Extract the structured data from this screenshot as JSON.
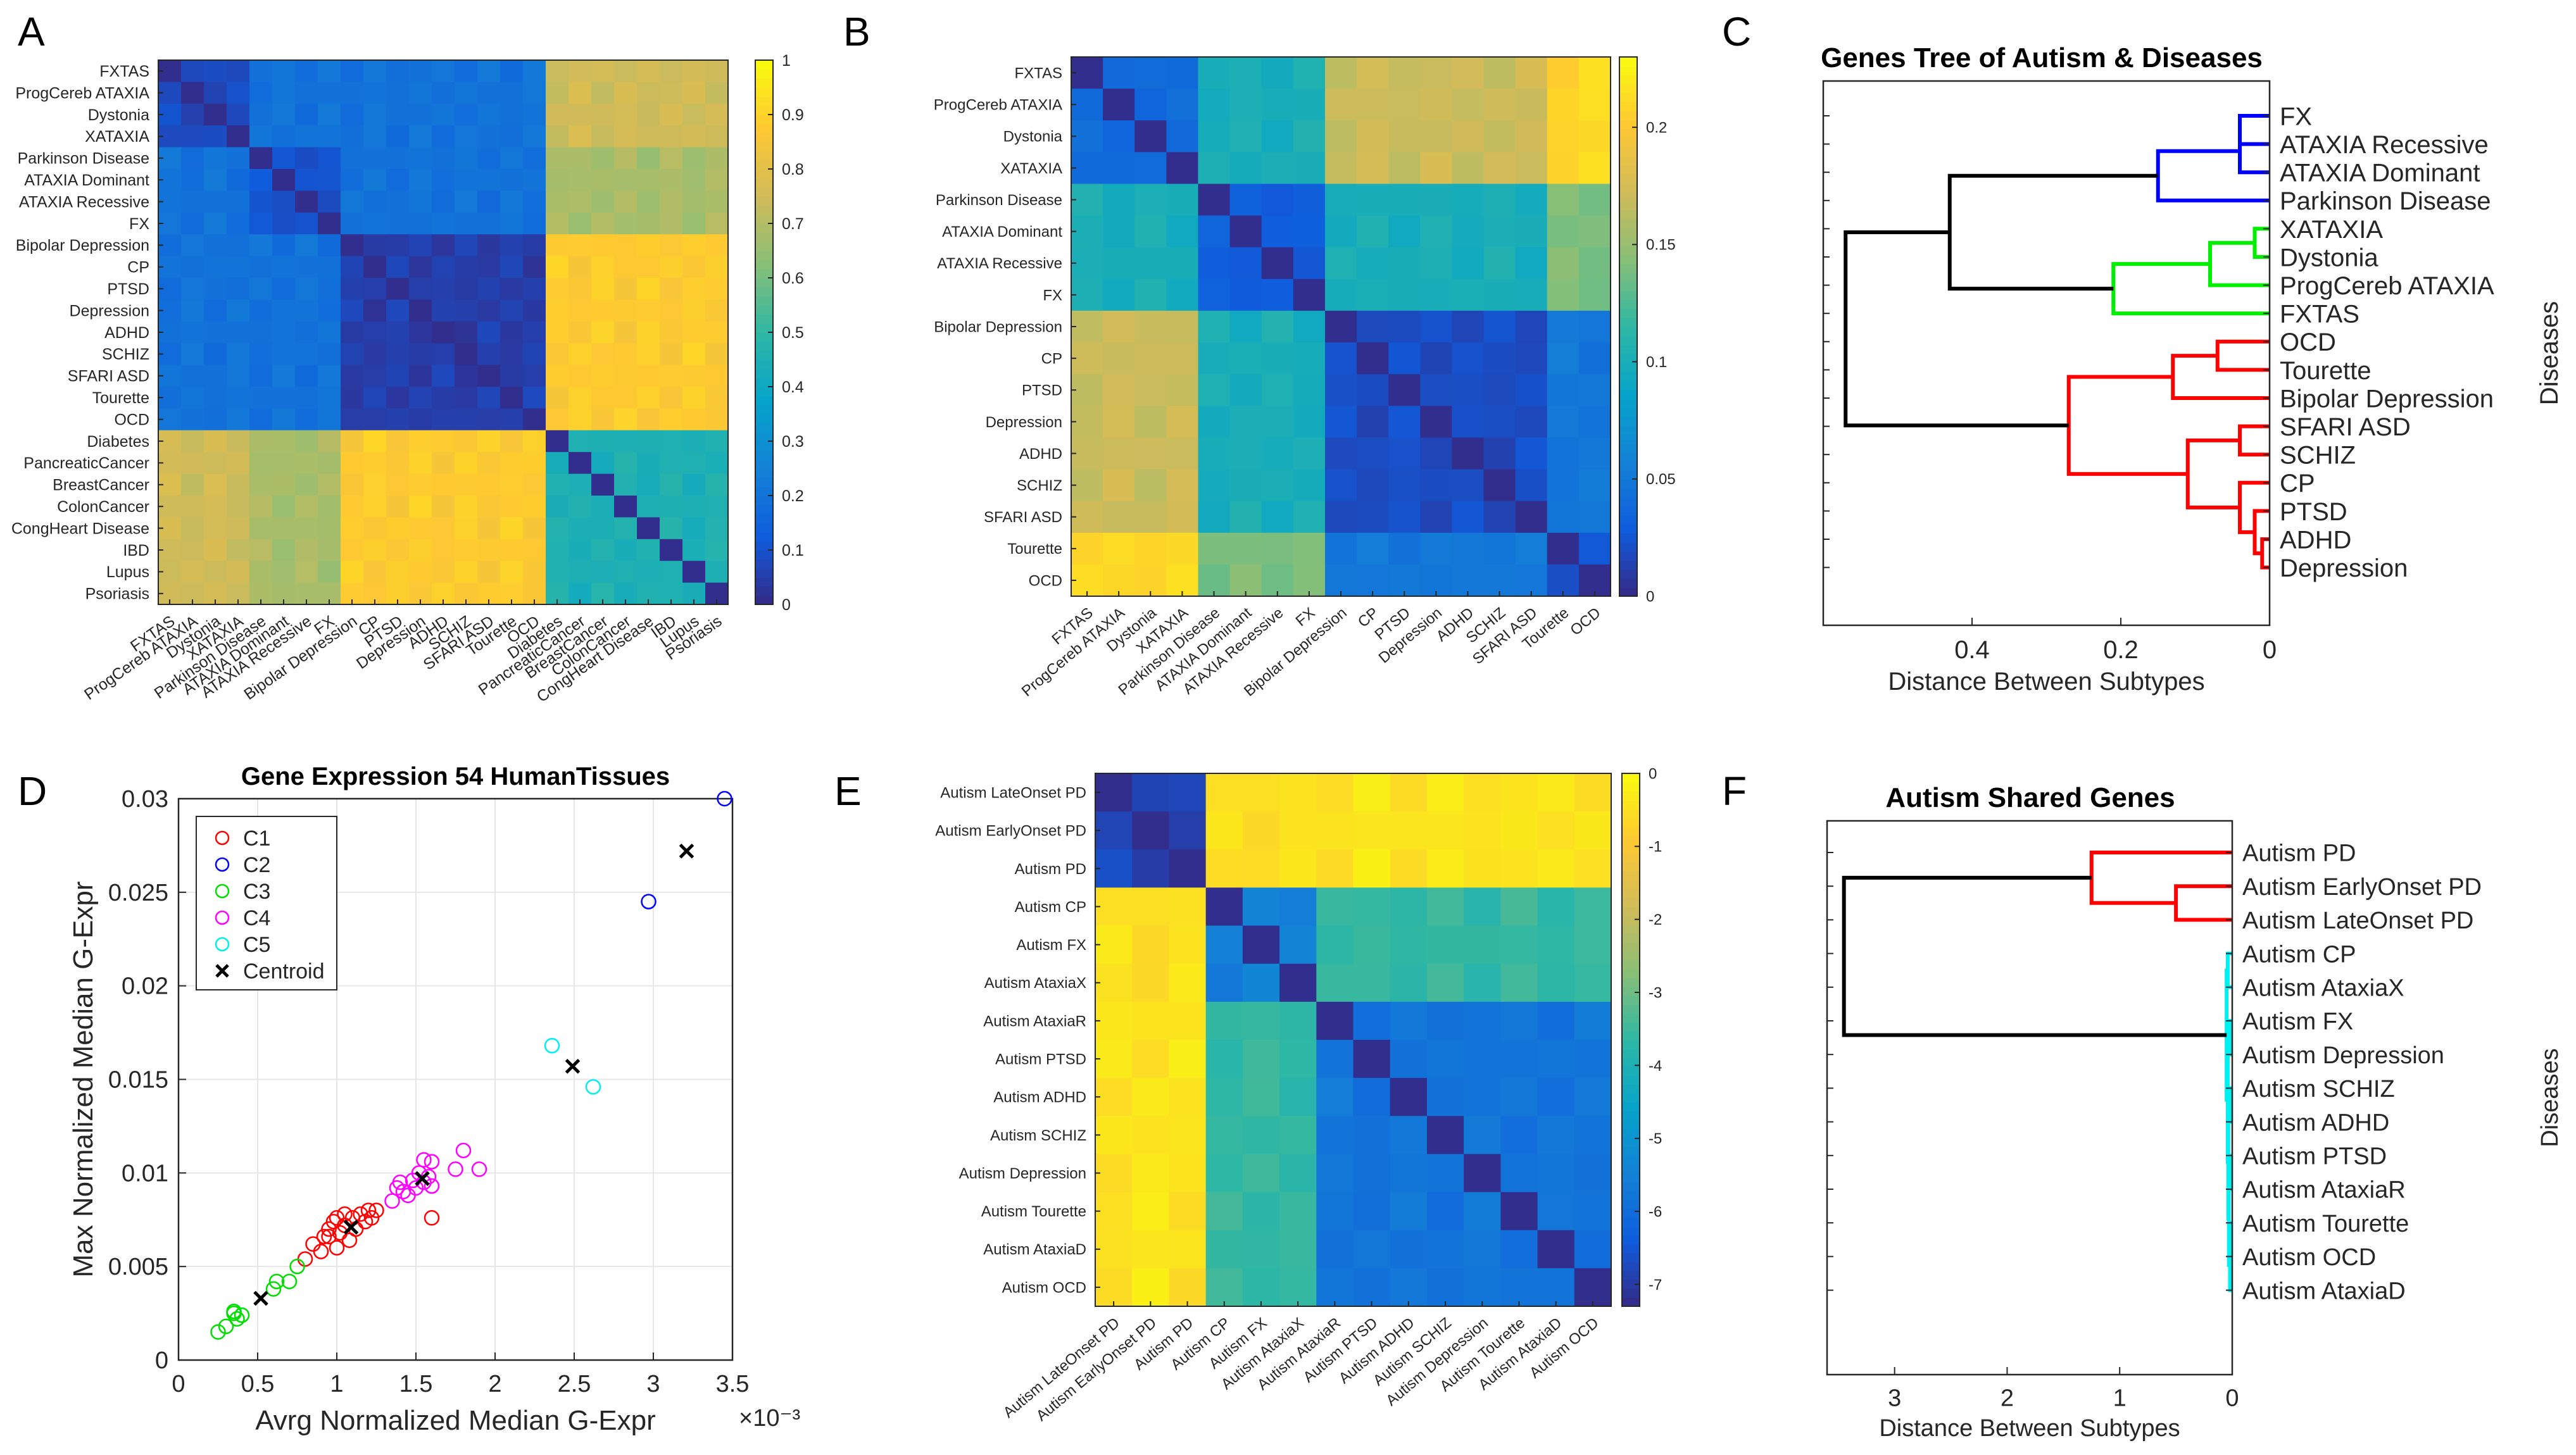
{
  "figure": {
    "panel_labels": [
      "A",
      "B",
      "C",
      "D",
      "E",
      "F"
    ]
  },
  "colors": {
    "parula": [
      "#352a87",
      "#0f5cdd",
      "#1481d6",
      "#06a4ca",
      "#2eb7a4",
      "#87bf77",
      "#d1bb59",
      "#fec832",
      "#f9fb0e"
    ],
    "cluster": [
      "#ff0000",
      "#0000ff",
      "#00dd00",
      "#ff00ff",
      "#00eeee",
      "#000000"
    ],
    "dendro": {
      "black": "#000000",
      "blue": "#0000ff",
      "green": "#00ee00",
      "red": "#ff0000",
      "cyan": "#00f0f0"
    }
  },
  "chart_data": [
    {
      "panel": "A",
      "type": "heatmap",
      "title": "",
      "labels": [
        "FXTAS",
        "ProgCereb ATAXIA",
        "Dystonia",
        "XATAXIA",
        "Parkinson Disease",
        "ATAXIA Dominant",
        "ATAXIA Recessive",
        "FX",
        "Bipolar Depression",
        "CP",
        "PTSD",
        "Depression",
        "ADHD",
        "SCHIZ",
        "SFARI ASD",
        "Tourette",
        "OCD",
        "Diabetes",
        "PancreaticCancer",
        "BreastCancer",
        "ColonCancer",
        "CongHeart Disease",
        "IBD",
        "Lupus",
        "Psoriasis"
      ],
      "groups": [
        [
          0,
          4
        ],
        [
          4,
          8
        ],
        [
          8,
          17
        ],
        [
          17,
          25
        ]
      ],
      "block_values": [
        [
          0.08,
          0.2,
          0.2,
          0.75
        ],
        [
          0.2,
          0.1,
          0.2,
          0.68
        ],
        [
          0.2,
          0.2,
          0.05,
          0.88
        ],
        [
          0.75,
          0.68,
          0.88,
          0.45
        ]
      ],
      "colorbar": {
        "min": 0,
        "max": 1,
        "ticks": [
          0,
          0.1,
          0.2,
          0.3,
          0.4,
          0.5,
          0.6,
          0.7,
          0.8,
          0.9,
          1
        ],
        "tick_labels": [
          "0",
          "0.1",
          "0.2",
          "0.3",
          "0.4",
          "0.5",
          "0.6",
          "0.7",
          "0.8",
          "0.9",
          "1"
        ]
      }
    },
    {
      "panel": "B",
      "type": "heatmap",
      "title": "",
      "labels": [
        "FXTAS",
        "ProgCereb ATAXIA",
        "Dystonia",
        "XATAXIA",
        "Parkinson Disease",
        "ATAXIA Dominant",
        "ATAXIA Recessive",
        "FX",
        "Bipolar Depression",
        "CP",
        "PTSD",
        "Depression",
        "ADHD",
        "SCHIZ",
        "SFARI ASD",
        "Tourette",
        "OCD"
      ],
      "groups": [
        [
          0,
          4
        ],
        [
          4,
          8
        ],
        [
          8,
          15
        ],
        [
          15,
          17
        ]
      ],
      "block_values": [
        [
          0.04,
          0.1,
          0.17,
          0.21
        ],
        [
          0.1,
          0.03,
          0.1,
          0.14
        ],
        [
          0.17,
          0.1,
          0.02,
          0.05
        ],
        [
          0.21,
          0.14,
          0.05,
          0.02
        ]
      ],
      "colorbar": {
        "min": 0,
        "max": 0.23,
        "ticks": [
          0,
          0.05,
          0.1,
          0.15,
          0.2
        ],
        "tick_labels": [
          "0",
          "0.05",
          "0.1",
          "0.15",
          "0.2"
        ]
      }
    },
    {
      "panel": "C",
      "type": "dendrogram",
      "title": "Genes Tree of Autism & Diseases",
      "xlabel": "Distance Between Subtypes",
      "ylabel": "Diseases",
      "xlim": [
        0.6,
        0
      ],
      "xticks": [
        0.4,
        0.2,
        0
      ],
      "xtick_labels": [
        "0.4",
        "0.2",
        "0"
      ],
      "leaves": [
        "FX",
        "ATAXIA Recessive",
        "ATAXIA Dominant",
        "Parkinson Disease",
        "XATAXIA",
        "Dystonia",
        "ProgCereb ATAXIA",
        "FXTAS",
        "OCD",
        "Tourette",
        "Bipolar Depression",
        "SFARI ASD",
        "SCHIZ",
        "CP",
        "PTSD",
        "ADHD",
        "Depression"
      ],
      "merges": [
        [
          0,
          1,
          0.04,
          "blue"
        ],
        [
          17,
          2,
          0.04,
          "blue"
        ],
        [
          18,
          3,
          0.15,
          "blue"
        ],
        [
          4,
          5,
          0.02,
          "green"
        ],
        [
          20,
          6,
          0.08,
          "green"
        ],
        [
          21,
          7,
          0.21,
          "green"
        ],
        [
          8,
          9,
          0.07,
          "red"
        ],
        [
          23,
          10,
          0.13,
          "red"
        ],
        [
          11,
          12,
          0.04,
          "red"
        ],
        [
          15,
          16,
          0.01,
          "red"
        ],
        [
          14,
          26,
          0.02,
          "red"
        ],
        [
          13,
          27,
          0.04,
          "red"
        ],
        [
          25,
          28,
          0.11,
          "red"
        ],
        [
          24,
          29,
          0.27,
          "red"
        ],
        [
          19,
          22,
          0.43,
          "black"
        ],
        [
          31,
          30,
          0.57,
          "black"
        ]
      ]
    },
    {
      "panel": "D",
      "type": "scatter",
      "title": "Gene Expression 54 HumanTissues",
      "xlabel": "Avrg Normalized Median G-Expr",
      "ylabel": "Max Normalized Median G-Expr",
      "x_multiplier": "×10⁻³",
      "xlim": [
        0,
        3.5
      ],
      "ylim": [
        0,
        0.03
      ],
      "xticks": [
        0,
        0.5,
        1,
        1.5,
        2,
        2.5,
        3,
        3.5
      ],
      "xtick_labels": [
        "0",
        "0.5",
        "1",
        "1.5",
        "2",
        "2.5",
        "3",
        "3.5"
      ],
      "yticks": [
        0,
        0.005,
        0.01,
        0.015,
        0.02,
        0.025,
        0.03
      ],
      "ytick_labels": [
        "0",
        "0.005",
        "0.01",
        "0.015",
        "0.02",
        "0.025",
        "0.03"
      ],
      "series": [
        {
          "name": "C1",
          "points": [
            [
              0.8,
              0.0054
            ],
            [
              0.85,
              0.0062
            ],
            [
              0.9,
              0.0058
            ],
            [
              0.92,
              0.0066
            ],
            [
              0.95,
              0.007
            ],
            [
              0.98,
              0.0074
            ],
            [
              1.0,
              0.006
            ],
            [
              1.02,
              0.0068
            ],
            [
              1.05,
              0.0072
            ],
            [
              1.08,
              0.0064
            ],
            [
              1.1,
              0.0076
            ],
            [
              1.12,
              0.007
            ],
            [
              1.15,
              0.0078
            ],
            [
              1.18,
              0.0074
            ],
            [
              1.2,
              0.008
            ],
            [
              1.22,
              0.0076
            ],
            [
              1.25,
              0.008
            ],
            [
              1.0,
              0.0076
            ],
            [
              1.05,
              0.0078
            ],
            [
              0.95,
              0.0066
            ],
            [
              1.6,
              0.0076
            ]
          ]
        },
        {
          "name": "C2",
          "points": [
            [
              2.97,
              0.0245
            ],
            [
              3.45,
              0.03
            ]
          ]
        },
        {
          "name": "C3",
          "points": [
            [
              0.25,
              0.0015
            ],
            [
              0.3,
              0.0018
            ],
            [
              0.35,
              0.0025
            ],
            [
              0.37,
              0.0022
            ],
            [
              0.35,
              0.0026
            ],
            [
              0.6,
              0.0038
            ],
            [
              0.62,
              0.0042
            ],
            [
              0.7,
              0.0042
            ],
            [
              0.75,
              0.005
            ],
            [
              0.4,
              0.0024
            ]
          ]
        },
        {
          "name": "C4",
          "points": [
            [
              1.35,
              0.0085
            ],
            [
              1.4,
              0.0095
            ],
            [
              1.42,
              0.009
            ],
            [
              1.45,
              0.0088
            ],
            [
              1.48,
              0.0096
            ],
            [
              1.5,
              0.0092
            ],
            [
              1.52,
              0.01
            ],
            [
              1.55,
              0.0095
            ],
            [
              1.58,
              0.0098
            ],
            [
              1.6,
              0.0093
            ],
            [
              1.38,
              0.0092
            ],
            [
              1.55,
              0.0107
            ],
            [
              1.6,
              0.0106
            ],
            [
              1.75,
              0.0102
            ],
            [
              1.8,
              0.0112
            ],
            [
              1.9,
              0.0102
            ]
          ]
        },
        {
          "name": "C5",
          "points": [
            [
              2.36,
              0.0168
            ],
            [
              2.62,
              0.0146
            ]
          ]
        },
        {
          "name": "Centroid",
          "points": [
            [
              0.52,
              0.0033
            ],
            [
              1.09,
              0.0071
            ],
            [
              1.54,
              0.0097
            ],
            [
              2.49,
              0.0157
            ],
            [
              3.21,
              0.0272
            ]
          ]
        }
      ]
    },
    {
      "panel": "E",
      "type": "heatmap",
      "title": "",
      "labels": [
        "Autism LateOnset PD",
        "Autism EarlyOnset PD",
        "Autism PD",
        "Autism CP",
        "Autism FX",
        "Autism AtaxiaX",
        "Autism AtaxiaR",
        "Autism PTSD",
        "Autism ADHD",
        "Autism SCHIZ",
        "Autism Depression",
        "Autism Tourette",
        "Autism AtaxiaD",
        "Autism OCD"
      ],
      "groups": [
        [
          0,
          3
        ],
        [
          3,
          6
        ],
        [
          6,
          14
        ]
      ],
      "block_values": [
        [
          -6.8,
          -0.5,
          -0.4
        ],
        [
          -0.5,
          -5.5,
          -3.6
        ],
        [
          -0.4,
          -3.6,
          -5.8
        ]
      ],
      "colorbar": {
        "min": -7.3,
        "max": 0,
        "ticks": [
          0,
          -1,
          -2,
          -3,
          -4,
          -5,
          -6,
          -7
        ],
        "tick_labels": [
          "0",
          "-1",
          "-2",
          "-3",
          "-4",
          "-5",
          "-6",
          "-7"
        ]
      }
    },
    {
      "panel": "F",
      "type": "dendrogram",
      "title": "Autism Shared Genes",
      "xlabel": "Distance Between Subtypes",
      "ylabel": "Diseases",
      "xlim": [
        3.6,
        0
      ],
      "xticks": [
        3,
        2,
        1,
        0
      ],
      "xtick_labels": [
        "3",
        "2",
        "1",
        "0"
      ],
      "leaves": [
        "Autism PD",
        "Autism EarlyOnset PD",
        "Autism LateOnset PD",
        "Autism CP",
        "Autism AtaxiaX",
        "Autism FX",
        "Autism Depression",
        "Autism SCHIZ",
        "Autism ADHD",
        "Autism PTSD",
        "Autism AtaxiaR",
        "Autism Tourette",
        "Autism OCD",
        "Autism AtaxiaD"
      ],
      "merges": [
        [
          1,
          2,
          0.5,
          "red"
        ],
        [
          0,
          14,
          1.25,
          "red"
        ],
        [
          3,
          4,
          0.04,
          "cyan"
        ],
        [
          5,
          6,
          0.02,
          "cyan"
        ],
        [
          7,
          8,
          0.01,
          "cyan"
        ],
        [
          9,
          10,
          0.01,
          "cyan"
        ],
        [
          11,
          12,
          0.01,
          "cyan"
        ],
        [
          13,
          20,
          0.02,
          "cyan"
        ],
        [
          19,
          21,
          0.03,
          "cyan"
        ],
        [
          18,
          22,
          0.035,
          "cyan"
        ],
        [
          17,
          23,
          0.04,
          "cyan"
        ],
        [
          16,
          24,
          0.05,
          "cyan"
        ],
        [
          15,
          25,
          3.45,
          "black"
        ]
      ]
    }
  ]
}
